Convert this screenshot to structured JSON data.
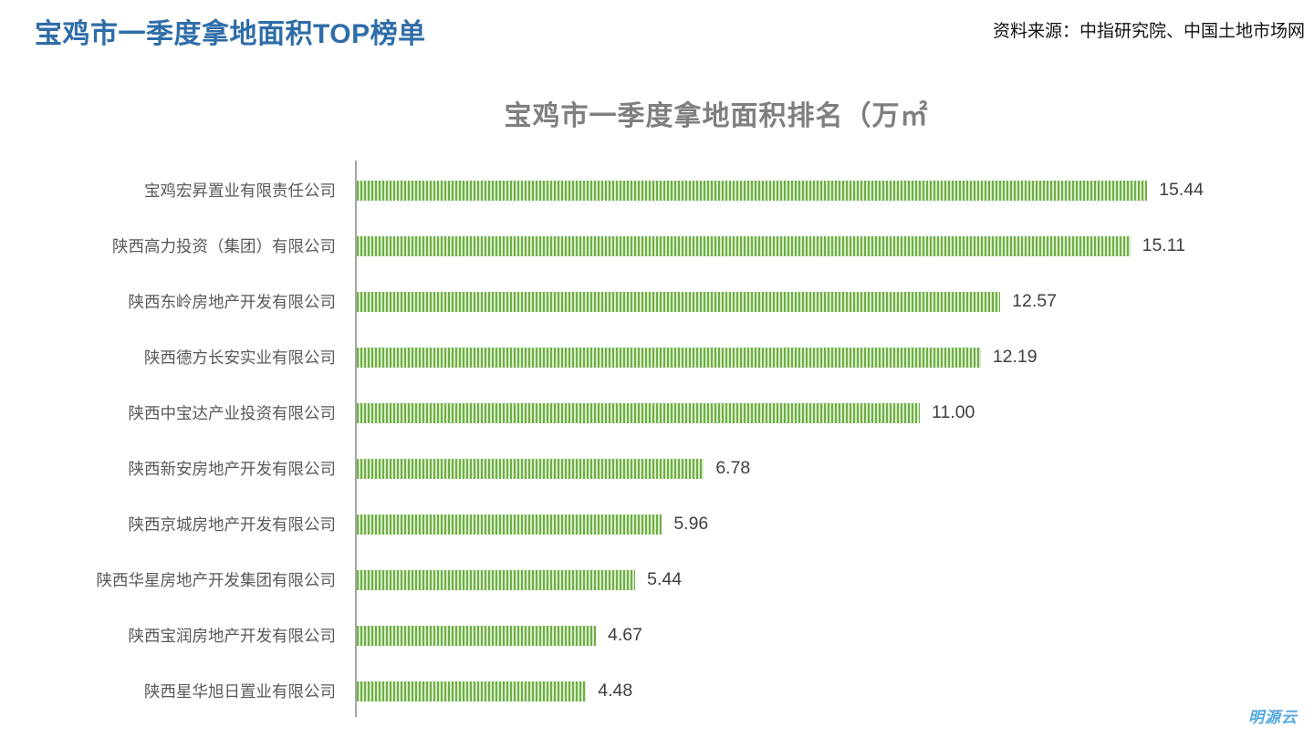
{
  "header": {
    "title": "宝鸡市一季度拿地面积TOP榜单",
    "source": "资料来源：中指研究院、中国土地市场网"
  },
  "footer": {
    "logo_text": "明源云"
  },
  "colors": {
    "title_blue": "#2f6da8",
    "chart_title_gray": "#7f7f7f",
    "label_gray": "#595959",
    "value_gray": "#3f3f3f",
    "axis_gray": "#a6a6a6",
    "bar_stripe_dark": "#70ad47",
    "bar_stripe_light": "#d5ecc5",
    "logo_blue": "#54a8e0"
  },
  "chart_data": {
    "type": "bar",
    "orientation": "horizontal",
    "title": "宝鸡市一季度拿地面积排名（万㎡",
    "xlabel": "",
    "ylabel": "",
    "grid": false,
    "legend": false,
    "xlim": [
      0,
      18.7
    ],
    "categories": [
      "宝鸡宏昇置业有限责任公司",
      "陕西高力投资（集团）有限公司",
      "陕西东岭房地产开发有限公司",
      "陕西德方长安实业有限公司",
      "陕西中宝达产业投资有限公司",
      "陕西新安房地产开发有限公司",
      "陕西京城房地产开发有限公司",
      "陕西华星房地产开发集团有限公司",
      "陕西宝润房地产开发有限公司",
      "陕西星华旭日置业有限公司"
    ],
    "values": [
      15.44,
      15.11,
      12.57,
      12.19,
      11.0,
      6.78,
      5.96,
      5.44,
      4.67,
      4.48
    ],
    "value_labels": [
      "15.44",
      "15.11",
      "12.57",
      "12.19",
      "11.00",
      "6.78",
      "5.96",
      "5.44",
      "4.67",
      "4.48"
    ]
  }
}
